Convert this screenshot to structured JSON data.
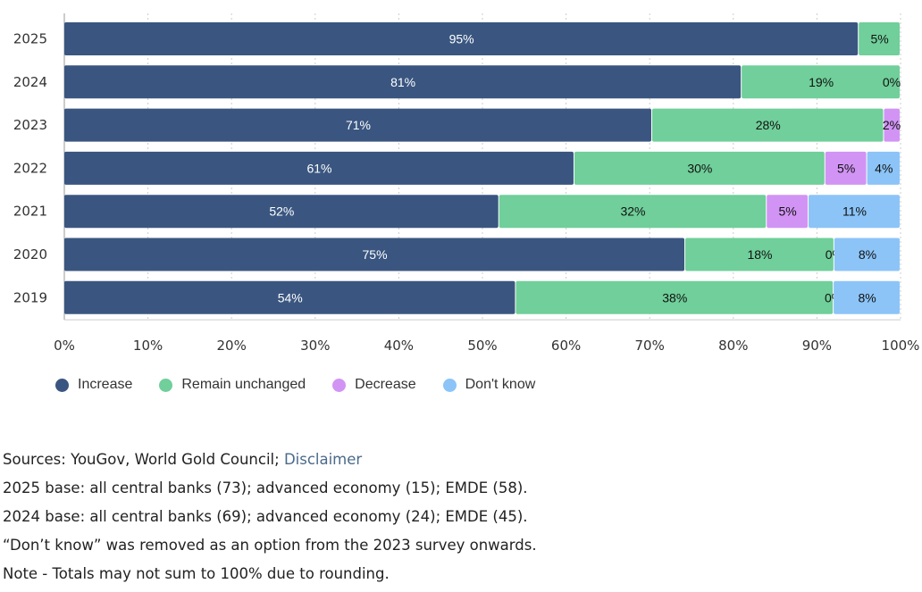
{
  "chart_data": {
    "type": "bar",
    "orientation": "horizontal",
    "stacking": "percent",
    "categories": [
      "2025",
      "2024",
      "2023",
      "2022",
      "2021",
      "2020",
      "2019"
    ],
    "series": [
      {
        "name": "Increase",
        "color": "#3a5680",
        "values": [
          95,
          81,
          71,
          61,
          52,
          75,
          54
        ]
      },
      {
        "name": "Remain unchanged",
        "color": "#70cf9a",
        "values": [
          5,
          19,
          28,
          30,
          32,
          18,
          38
        ]
      },
      {
        "name": "Decrease",
        "color": "#d194f4",
        "values": [
          null,
          0,
          2,
          5,
          5,
          0,
          0
        ]
      },
      {
        "name": "Don't know",
        "color": "#8cc4f8",
        "values": [
          null,
          null,
          null,
          4,
          11,
          8,
          8
        ]
      }
    ],
    "xlim": [
      0,
      100
    ],
    "xticks": [
      "0%",
      "10%",
      "20%",
      "30%",
      "40%",
      "50%",
      "60%",
      "70%",
      "80%",
      "90%",
      "100%"
    ],
    "grid": true,
    "legend_placement": "bottom-left"
  },
  "notes": {
    "sources_prefix": "Sources: YouGov, World Gold Council; ",
    "disclaimer_link": "Disclaimer",
    "lines": [
      "2025 base: all central banks (73); advanced economy (15); EMDE (58).",
      "2024 base: all central banks (69); advanced economy (24); EMDE (45).",
      "“Don’t know” was removed as an option from the 2023 survey onwards.",
      "Note - Totals may not sum to 100% due to rounding."
    ]
  }
}
